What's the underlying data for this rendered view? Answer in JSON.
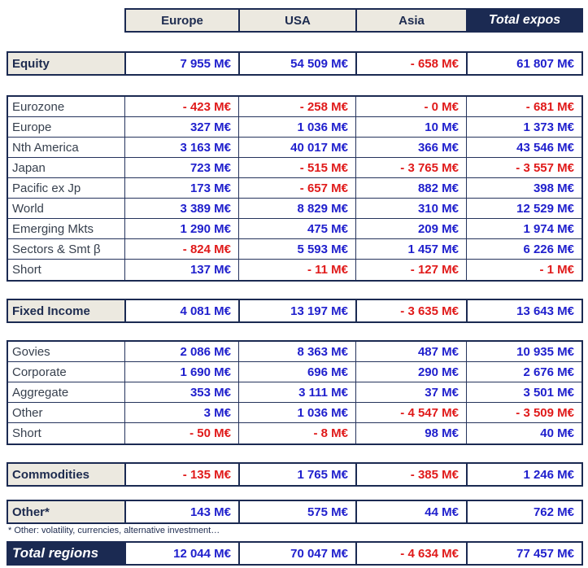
{
  "columns": [
    "Europe",
    "USA",
    "Asia",
    "Total expos"
  ],
  "sections": {
    "equity": {
      "label": "Equity",
      "v": [
        "7 955 M€",
        "54 509 M€",
        "- 658 M€",
        "61 807 M€"
      ]
    },
    "equity_rows": [
      {
        "label": "Eurozone",
        "v": [
          "- 423 M€",
          "- 258 M€",
          "- 0 M€",
          "- 681 M€"
        ]
      },
      {
        "label": "Europe",
        "v": [
          "327 M€",
          "1 036 M€",
          "10 M€",
          "1 373 M€"
        ]
      },
      {
        "label": "Nth America",
        "v": [
          "3 163 M€",
          "40 017 M€",
          "366 M€",
          "43 546 M€"
        ]
      },
      {
        "label": "Japan",
        "v": [
          "723 M€",
          "- 515 M€",
          "- 3 765 M€",
          "- 3 557 M€"
        ]
      },
      {
        "label": "Pacific ex Jp",
        "v": [
          "173 M€",
          "- 657 M€",
          "882 M€",
          "398 M€"
        ]
      },
      {
        "label": "World",
        "v": [
          "3 389 M€",
          "8 829 M€",
          "310 M€",
          "12 529 M€"
        ]
      },
      {
        "label": "Emerging Mkts",
        "v": [
          "1 290 M€",
          "475 M€",
          "209 M€",
          "1 974 M€"
        ]
      },
      {
        "label": "Sectors & Smt β",
        "v": [
          "- 824 M€",
          "5 593 M€",
          "1 457 M€",
          "6 226 M€"
        ]
      },
      {
        "label": "Short",
        "v": [
          "137 M€",
          "- 11 M€",
          "- 127 M€",
          "- 1 M€"
        ]
      }
    ],
    "fixed_income": {
      "label": "Fixed Income",
      "v": [
        "4 081 M€",
        "13 197 M€",
        "- 3 635 M€",
        "13 643 M€"
      ]
    },
    "fixed_income_rows": [
      {
        "label": "Govies",
        "v": [
          "2 086 M€",
          "8 363 M€",
          "487 M€",
          "10 935 M€"
        ]
      },
      {
        "label": "Corporate",
        "v": [
          "1 690 M€",
          "696 M€",
          "290 M€",
          "2 676 M€"
        ]
      },
      {
        "label": "Aggregate",
        "v": [
          "353 M€",
          "3 111 M€",
          "37 M€",
          "3 501 M€"
        ]
      },
      {
        "label": "Other",
        "v": [
          "3 M€",
          "1 036 M€",
          "- 4 547 M€",
          "- 3 509 M€"
        ]
      },
      {
        "label": "Short",
        "v": [
          "- 50 M€",
          "- 8 M€",
          "98 M€",
          "40 M€"
        ]
      }
    ],
    "commodities": {
      "label": "Commodities",
      "v": [
        "- 135 M€",
        "1 765 M€",
        "- 385 M€",
        "1 246 M€"
      ]
    },
    "other": {
      "label": "Other*",
      "v": [
        "143 M€",
        "575 M€",
        "44 M€",
        "762 M€"
      ]
    },
    "total": {
      "label": "Total regions",
      "v": [
        "12 044 M€",
        "70 047 M€",
        "- 4 634 M€",
        "77 457 M€"
      ]
    }
  },
  "footnote": "* Other: volatility, currencies, alternative investment…",
  "colors": {
    "navy": "#1b2a52",
    "value_blue": "#2020cd",
    "value_red": "#e01a1a",
    "header_beige": "#ece9e0"
  }
}
